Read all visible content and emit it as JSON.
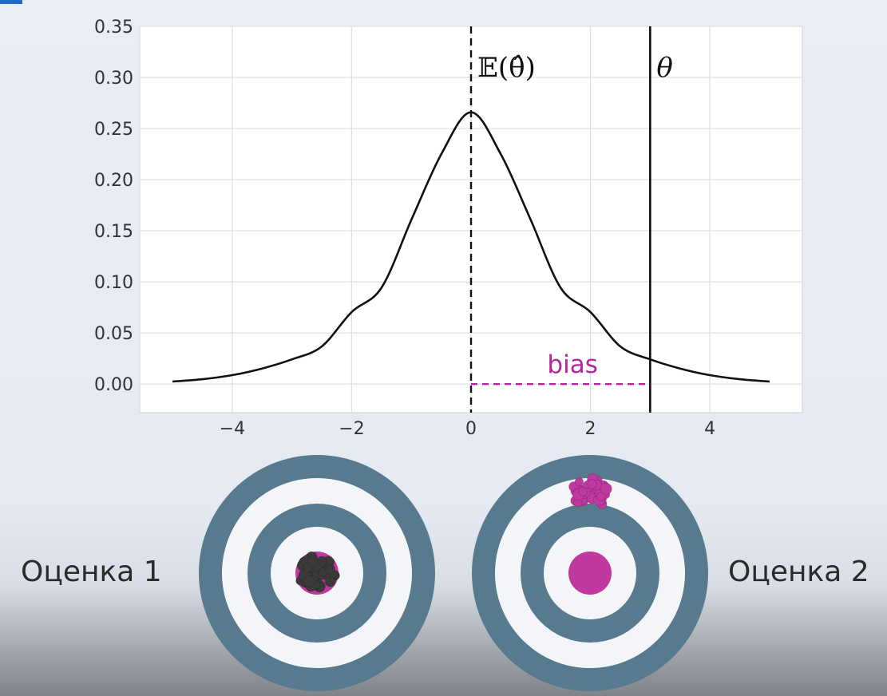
{
  "chart_data": {
    "type": "line",
    "title": "",
    "xlabel": "",
    "ylabel": "",
    "xlim": [
      -5.55,
      5.55
    ],
    "ylim": [
      -0.028,
      0.35
    ],
    "x_ticks": [
      -4,
      -2,
      0,
      2,
      4
    ],
    "x_tick_labels": [
      "−4",
      "−2",
      "0",
      "2",
      "4"
    ],
    "y_ticks": [
      0.0,
      0.05,
      0.1,
      0.15,
      0.2,
      0.25,
      0.3,
      0.35
    ],
    "y_tick_labels": [
      "0.00",
      "0.05",
      "0.10",
      "0.15",
      "0.20",
      "0.25",
      "0.30",
      "0.35"
    ],
    "grid": true,
    "series": [
      {
        "kind": "curve",
        "x": [
          -5,
          -4.5,
          -4,
          -3.5,
          -3,
          -2.5,
          -2,
          -1.5,
          -1,
          -0.5,
          0,
          0.5,
          1,
          1.5,
          2,
          2.5,
          3,
          3.5,
          4,
          4.5,
          5
        ],
        "y": [
          0.0024,
          0.0047,
          0.0087,
          0.0152,
          0.0242,
          0.0368,
          0.0705,
          0.0942,
          0.1606,
          0.2247,
          0.2659,
          0.2247,
          0.1606,
          0.0942,
          0.0705,
          0.0368,
          0.0242,
          0.0152,
          0.0087,
          0.0047,
          0.0024
        ],
        "color": "#111111"
      }
    ],
    "annotations": {
      "expectation": {
        "x": 0,
        "label": "𝔼(θ̂)",
        "style": "dashed",
        "color": "#111111"
      },
      "true_value": {
        "x": 3,
        "label": "θ",
        "style": "solid",
        "color": "#111111"
      },
      "bias": {
        "x_start": 0,
        "x_end": 3,
        "y": 0,
        "label": "bias",
        "style": "dashed",
        "color": "#b4279d"
      }
    }
  },
  "targets": {
    "ring_color": "#587a8e",
    "target1": {
      "label": "Оценка 1",
      "hits_color": "#3a3a3a",
      "bullseye_color": "#c0399f"
    },
    "target2": {
      "label": "Оценка 2",
      "hits_color": "#c0399f",
      "bullseye_color": "#c0399f"
    }
  }
}
